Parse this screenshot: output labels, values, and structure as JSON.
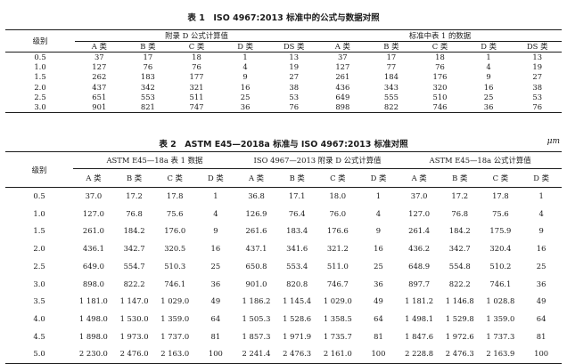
{
  "table1": {
    "caption": "表 1　ISO 4967:2013 标准中的公式与数据对照",
    "row_header": "级别",
    "groups": [
      "附录 D 公式计算值",
      "标准中表 1 的数据"
    ],
    "columns": [
      "A 类",
      "B 类",
      "C 类",
      "D 类",
      "DS 类",
      "A 类",
      "B 类",
      "C 类",
      "D 类",
      "DS 类"
    ],
    "rows": [
      [
        "0.5",
        "37",
        "17",
        "18",
        "1",
        "13",
        "37",
        "17",
        "18",
        "1",
        "13"
      ],
      [
        "1.0",
        "127",
        "76",
        "76",
        "4",
        "19",
        "127",
        "77",
        "76",
        "4",
        "19"
      ],
      [
        "1.5",
        "262",
        "183",
        "177",
        "9",
        "27",
        "261",
        "184",
        "176",
        "9",
        "27"
      ],
      [
        "2.0",
        "437",
        "342",
        "321",
        "16",
        "38",
        "436",
        "343",
        "320",
        "16",
        "38"
      ],
      [
        "2.5",
        "651",
        "553",
        "511",
        "25",
        "53",
        "649",
        "555",
        "510",
        "25",
        "53"
      ],
      [
        "3.0",
        "901",
        "821",
        "747",
        "36",
        "76",
        "898",
        "822",
        "746",
        "36",
        "76"
      ]
    ]
  },
  "table2": {
    "caption": "表 2　ASTM E45—2018a 标准与 ISO 4967:2013 标准对照",
    "unit": "μm",
    "row_header": "级别",
    "groups": [
      "ASTM E45—18a 表 1 数据",
      "ISO 4967—2013 附录 D 公式计算值",
      "ASTM E45—18a 公式计算值"
    ],
    "columns": [
      "A 类",
      "B 类",
      "C 类",
      "D 类",
      "A 类",
      "B 类",
      "C 类",
      "D 类",
      "A 类",
      "B 类",
      "C 类",
      "D 类"
    ],
    "rows": [
      [
        "0.5",
        "37.0",
        "17.2",
        "17.8",
        "1",
        "36.8",
        "17.1",
        "18.0",
        "1",
        "37.0",
        "17.2",
        "17.8",
        "1"
      ],
      [
        "1.0",
        "127.0",
        "76.8",
        "75.6",
        "4",
        "126.9",
        "76.4",
        "76.0",
        "4",
        "127.0",
        "76.8",
        "75.6",
        "4"
      ],
      [
        "1.5",
        "261.0",
        "184.2",
        "176.0",
        "9",
        "261.6",
        "183.4",
        "176.6",
        "9",
        "261.4",
        "184.2",
        "175.9",
        "9"
      ],
      [
        "2.0",
        "436.1",
        "342.7",
        "320.5",
        "16",
        "437.1",
        "341.6",
        "321.2",
        "16",
        "436.2",
        "342.7",
        "320.4",
        "16"
      ],
      [
        "2.5",
        "649.0",
        "554.7",
        "510.3",
        "25",
        "650.8",
        "553.4",
        "511.0",
        "25",
        "648.9",
        "554.8",
        "510.2",
        "25"
      ],
      [
        "3.0",
        "898.0",
        "822.2",
        "746.1",
        "36",
        "901.0",
        "820.8",
        "746.7",
        "36",
        "897.7",
        "822.2",
        "746.1",
        "36"
      ],
      [
        "3.5",
        "1 181.0",
        "1 147.0",
        "1 029.0",
        "49",
        "1 186.2",
        "1 145.4",
        "1 029.0",
        "49",
        "1 181.2",
        "1 146.8",
        "1 028.8",
        "49"
      ],
      [
        "4.0",
        "1 498.0",
        "1 530.0",
        "1 359.0",
        "64",
        "1 505.3",
        "1 528.6",
        "1 358.5",
        "64",
        "1 498.1",
        "1 529.8",
        "1 359.0",
        "64"
      ],
      [
        "4.5",
        "1 898.0",
        "1 973.0",
        "1 737.0",
        "81",
        "1 857.3",
        "1 971.9",
        "1 735.7",
        "81",
        "1 847.6",
        "1 972.6",
        "1 737.3",
        "81"
      ],
      [
        "5.0",
        "2 230.0",
        "2 476.0",
        "2 163.0",
        "100",
        "2 241.4",
        "2 476.3",
        "2 161.0",
        "100",
        "2 228.8",
        "2 476.3",
        "2 163.9",
        "100"
      ]
    ]
  }
}
